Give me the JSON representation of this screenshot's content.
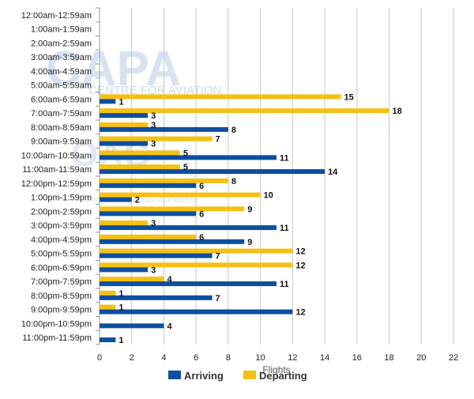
{
  "colors": {
    "arriving": "#0d4f9e",
    "departing": "#f5c016",
    "grid": "#c8c8c8",
    "axis": "#999999"
  },
  "watermark": {
    "brand": "CAPA",
    "tagline": "CENTRE FOR AVIATION",
    "brand2": "OAG",
    "tagline2": "Flight Information Worldwide"
  },
  "chart_data": {
    "type": "bar",
    "orientation": "horizontal",
    "title": "",
    "xlabel": "Flights",
    "ylabel": "",
    "xlim": [
      0,
      22
    ],
    "xticks": [
      0,
      2,
      4,
      6,
      8,
      10,
      12,
      14,
      16,
      18,
      20,
      22
    ],
    "grid": true,
    "legend_position": "bottom",
    "categories": [
      "12:00am-12:59am",
      "1:00am-1:59am",
      "2:00am-2:59am",
      "3:00am-3:59am",
      "4:00am-4:59am",
      "5:00am-5:59am",
      "6:00am-6:59am",
      "7:00am-7:59am",
      "8:00am-8:59am",
      "9:00am-9:59am",
      "10:00am-10:59am",
      "11:00am-11:59am",
      "12:00pm-12:59pm",
      "1:00pm-1:59pm",
      "2:00pm-2:59pm",
      "3:00pm-3:59pm",
      "4:00pm-4:59pm",
      "5:00pm-5:59pm",
      "6:00pm-6:59pm",
      "7:00pm-7:59pm",
      "8:00pm-8:59pm",
      "9:00pm-9:59pm",
      "10:00pm-10:59pm",
      "11:00pm-11:59pm"
    ],
    "series": [
      {
        "name": "Departing",
        "color": "#f5c016",
        "values": [
          null,
          null,
          null,
          null,
          null,
          null,
          15,
          18,
          3,
          7,
          5,
          5,
          8,
          10,
          9,
          3,
          6,
          12,
          12,
          4,
          1,
          1,
          null,
          null
        ]
      },
      {
        "name": "Arriving",
        "color": "#0d4f9e",
        "values": [
          null,
          null,
          null,
          null,
          null,
          null,
          1,
          3,
          8,
          3,
          11,
          14,
          6,
          2,
          6,
          11,
          9,
          7,
          3,
          11,
          7,
          12,
          4,
          1
        ]
      }
    ],
    "legend": [
      "Arriving",
      "Departing"
    ]
  }
}
